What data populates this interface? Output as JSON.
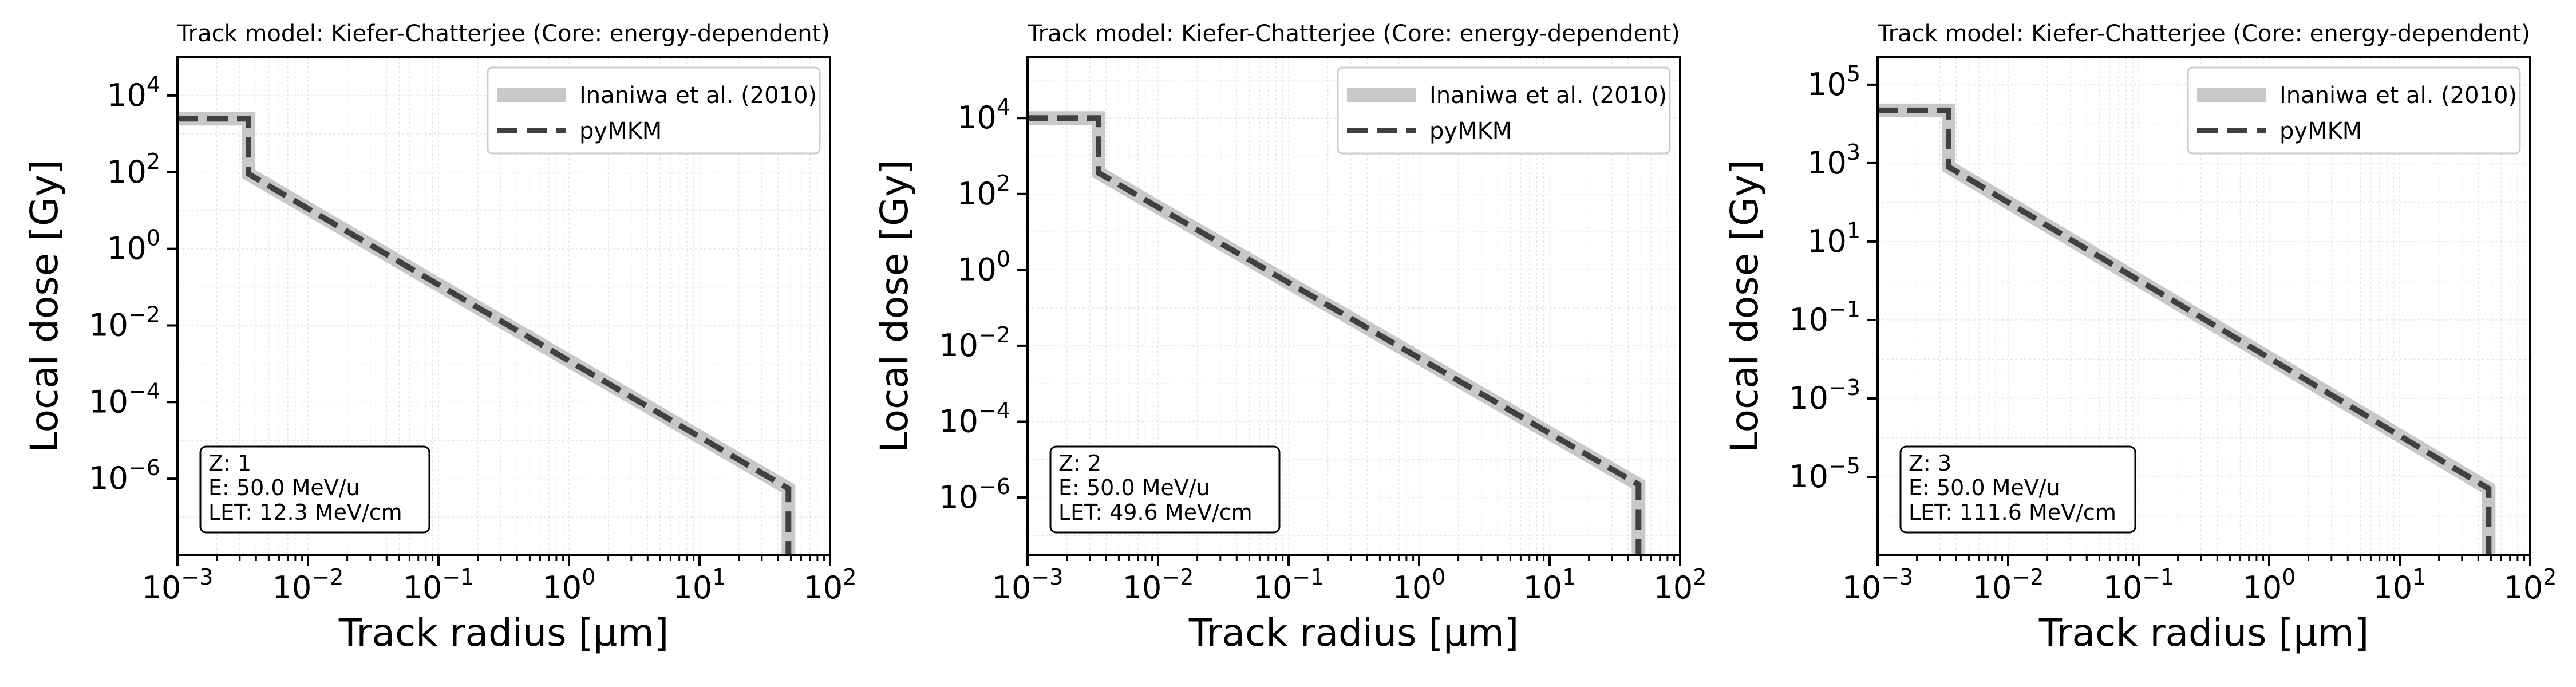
{
  "figure": {
    "background": "#ffffff"
  },
  "chart_data": [
    {
      "type": "line",
      "title": "Track model: Kiefer-Chatterjee (Core: energy-dependent)",
      "xlabel": "Track radius [μm]",
      "ylabel": "Local dose [Gy]",
      "x_scale": "log",
      "y_scale": "log",
      "xlim": [
        0.001,
        100
      ],
      "ylim": [
        1e-08,
        100000.0
      ],
      "x_ticks": [
        {
          "v": 0.001,
          "b": "10",
          "e": "−3"
        },
        {
          "v": 0.01,
          "b": "10",
          "e": "−2"
        },
        {
          "v": 0.1,
          "b": "10",
          "e": "−1"
        },
        {
          "v": 1,
          "b": "10",
          "e": "0"
        },
        {
          "v": 10,
          "b": "10",
          "e": "1"
        },
        {
          "v": 100,
          "b": "10",
          "e": "2"
        }
      ],
      "y_ticks": [
        {
          "v": 10000.0,
          "b": "10",
          "e": "4"
        },
        {
          "v": 100.0,
          "b": "10",
          "e": "2"
        },
        {
          "v": 1,
          "b": "10",
          "e": "0"
        },
        {
          "v": 0.01,
          "b": "10",
          "e": "−2"
        },
        {
          "v": 0.0001,
          "b": "10",
          "e": "−4"
        },
        {
          "v": 1e-06,
          "b": "10",
          "e": "−6"
        }
      ],
      "grid": true,
      "legend_position": "upper right",
      "series": [
        {
          "name": "Inaniwa et al. (2010)",
          "style": "solid",
          "color": "#c8c8c8",
          "x": [
            0.001,
            0.0035,
            0.0035,
            48,
            48
          ],
          "y": [
            2500,
            2500,
            90,
            5.5e-07,
            1e-08
          ]
        },
        {
          "name": "pyMKM",
          "style": "dashed",
          "color": "#404040",
          "x": [
            0.001,
            0.0035,
            0.0035,
            48,
            48
          ],
          "y": [
            2500,
            2500,
            90,
            5.5e-07,
            1e-08
          ]
        }
      ],
      "annotation": {
        "lines": [
          "Z: 1",
          "E: 50.0 MeV/u",
          "LET: 12.3 MeV/cm"
        ]
      }
    },
    {
      "type": "line",
      "title": "Track model: Kiefer-Chatterjee (Core: energy-dependent)",
      "xlabel": "Track radius [μm]",
      "ylabel": "Local dose [Gy]",
      "x_scale": "log",
      "y_scale": "log",
      "xlim": [
        0.001,
        100
      ],
      "ylim": [
        3e-08,
        400000.0
      ],
      "x_ticks": [
        {
          "v": 0.001,
          "b": "10",
          "e": "−3"
        },
        {
          "v": 0.01,
          "b": "10",
          "e": "−2"
        },
        {
          "v": 0.1,
          "b": "10",
          "e": "−1"
        },
        {
          "v": 1,
          "b": "10",
          "e": "0"
        },
        {
          "v": 10,
          "b": "10",
          "e": "1"
        },
        {
          "v": 100,
          "b": "10",
          "e": "2"
        }
      ],
      "y_ticks": [
        {
          "v": 10000.0,
          "b": "10",
          "e": "4"
        },
        {
          "v": 100.0,
          "b": "10",
          "e": "2"
        },
        {
          "v": 1,
          "b": "10",
          "e": "0"
        },
        {
          "v": 0.01,
          "b": "10",
          "e": "−2"
        },
        {
          "v": 0.0001,
          "b": "10",
          "e": "−4"
        },
        {
          "v": 1e-06,
          "b": "10",
          "e": "−6"
        }
      ],
      "grid": true,
      "legend_position": "upper right",
      "series": [
        {
          "name": "Inaniwa et al. (2010)",
          "style": "solid",
          "color": "#c8c8c8",
          "x": [
            0.001,
            0.0035,
            0.0035,
            48,
            48
          ],
          "y": [
            10000,
            10000,
            360,
            2.2e-06,
            3e-08
          ]
        },
        {
          "name": "pyMKM",
          "style": "dashed",
          "color": "#404040",
          "x": [
            0.001,
            0.0035,
            0.0035,
            48,
            48
          ],
          "y": [
            10000,
            10000,
            360,
            2.2e-06,
            3e-08
          ]
        }
      ],
      "annotation": {
        "lines": [
          "Z: 2",
          "E: 50.0 MeV/u",
          "LET: 49.6 MeV/cm"
        ]
      }
    },
    {
      "type": "line",
      "title": "Track model: Kiefer-Chatterjee (Core: energy-dependent)",
      "xlabel": "Track radius [μm]",
      "ylabel": "Local dose [Gy]",
      "x_scale": "log",
      "y_scale": "log",
      "xlim": [
        0.001,
        100
      ],
      "ylim": [
        1e-07,
        500000.0
      ],
      "x_ticks": [
        {
          "v": 0.001,
          "b": "10",
          "e": "−3"
        },
        {
          "v": 0.01,
          "b": "10",
          "e": "−2"
        },
        {
          "v": 0.1,
          "b": "10",
          "e": "−1"
        },
        {
          "v": 1,
          "b": "10",
          "e": "0"
        },
        {
          "v": 10,
          "b": "10",
          "e": "1"
        },
        {
          "v": 100,
          "b": "10",
          "e": "2"
        }
      ],
      "y_ticks": [
        {
          "v": 100000.0,
          "b": "10",
          "e": "5"
        },
        {
          "v": 1000.0,
          "b": "10",
          "e": "3"
        },
        {
          "v": 10,
          "b": "10",
          "e": "1"
        },
        {
          "v": 0.1,
          "b": "10",
          "e": "−1"
        },
        {
          "v": 0.001,
          "b": "10",
          "e": "−3"
        },
        {
          "v": 1e-05,
          "b": "10",
          "e": "−5"
        }
      ],
      "grid": true,
      "legend_position": "upper right",
      "series": [
        {
          "name": "Inaniwa et al. (2010)",
          "style": "solid",
          "color": "#c8c8c8",
          "x": [
            0.001,
            0.0035,
            0.0035,
            48,
            48
          ],
          "y": [
            22000,
            22000,
            800,
            5e-06,
            1e-07
          ]
        },
        {
          "name": "pyMKM",
          "style": "dashed",
          "color": "#404040",
          "x": [
            0.001,
            0.0035,
            0.0035,
            48,
            48
          ],
          "y": [
            22000,
            22000,
            800,
            5e-06,
            1e-07
          ]
        }
      ],
      "annotation": {
        "lines": [
          "Z: 3",
          "E: 50.0 MeV/u",
          "LET: 111.6 MeV/cm"
        ]
      }
    }
  ]
}
